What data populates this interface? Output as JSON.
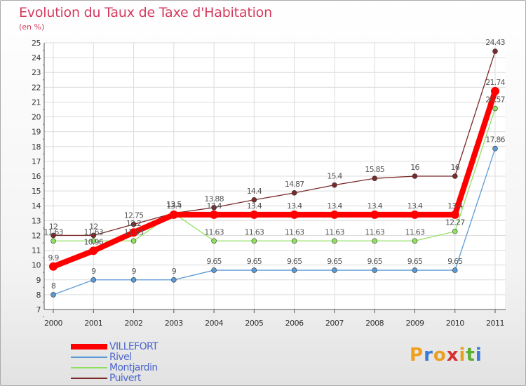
{
  "header": {
    "title": "Evolution du Taux de Taxe d'Habitation",
    "subtitle": "(en %)"
  },
  "brand": {
    "logo_letters": [
      "P",
      "r",
      "o",
      "x",
      "i",
      "t",
      "i"
    ],
    "logo_colors": [
      "#f0a01e",
      "#3a7ad8",
      "#e8a020",
      "#d63030",
      "#e8a020",
      "#58b030",
      "#3a7ad8"
    ]
  },
  "chart_data": {
    "type": "line",
    "title": "Evolution du Taux de Taxe d'Habitation",
    "subtitle": "(en %)",
    "xlabel": "",
    "ylabel": "",
    "x": [
      "2000",
      "2001",
      "2002",
      "2003",
      "2004",
      "2005",
      "2006",
      "2007",
      "2008",
      "2009",
      "2010",
      "2011"
    ],
    "ylim": [
      7,
      25
    ],
    "yticks": [
      "7",
      "8",
      "9",
      "10",
      "11",
      "12",
      "13",
      "14",
      "15",
      "16",
      "17",
      "18",
      "19",
      "20",
      "21",
      "22",
      "23",
      "24",
      "25"
    ],
    "grid": true,
    "legend_position": "bottom-left",
    "series": [
      {
        "name": "VILLEFORT",
        "color": "#ff0000",
        "values": [
          9.9,
          10.96,
          12.2,
          13.4,
          13.4,
          13.4,
          13.4,
          13.4,
          13.4,
          13.4,
          13.4,
          21.74
        ],
        "labels": [
          "9.9",
          "10.96",
          "12.2",
          "13.4",
          "13.4",
          "13.4",
          "13.4",
          "13.4",
          "13.4",
          "13.4",
          "13.4",
          "21.74"
        ]
      },
      {
        "name": "Rivel",
        "color": "#5b9bd5",
        "values": [
          8,
          9,
          9,
          9,
          9.65,
          9.65,
          9.65,
          9.65,
          9.65,
          9.65,
          9.65,
          17.86
        ],
        "labels": [
          "8",
          "9",
          "9",
          "9",
          "9.65",
          "9.65",
          "9.65",
          "9.65",
          "9.65",
          "9.65",
          "9.65",
          "17.86"
        ]
      },
      {
        "name": "Montjardin",
        "color": "#90e060",
        "values": [
          11.63,
          11.63,
          11.63,
          13.5,
          11.63,
          11.63,
          11.63,
          11.63,
          11.63,
          11.63,
          12.27,
          20.57
        ],
        "labels": [
          "11.63",
          "11.63",
          "11.63",
          "13.5",
          "11.63",
          "11.63",
          "11.63",
          "11.63",
          "11.63",
          "11.63",
          "12.27",
          "20.57"
        ]
      },
      {
        "name": "Puivert",
        "color": "#7a2a2a",
        "values": [
          12,
          12,
          12.75,
          13.5,
          13.88,
          14.4,
          14.87,
          15.4,
          15.85,
          16,
          16,
          24.43
        ],
        "labels": [
          "12",
          "12",
          "12.75",
          "13.5",
          "13.88",
          "14.4",
          "14.87",
          "15.4",
          "15.85",
          "16",
          "16",
          "24.43"
        ]
      }
    ]
  }
}
